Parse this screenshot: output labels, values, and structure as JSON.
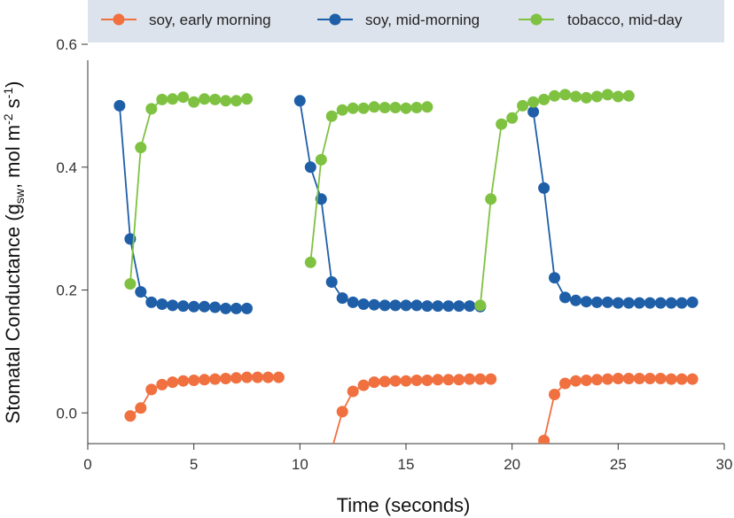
{
  "chart_data": {
    "type": "line",
    "xlabel": "Time (seconds)",
    "ylabel": {
      "pre": "Stomatal Conductance (g",
      "sub1": "sw",
      "mid": ", mol m",
      "sup1": "-2",
      "mid2": " s",
      "sup2": "-1",
      "post": ")"
    },
    "xlim": [
      0,
      30
    ],
    "ylim": [
      -0.05,
      0.6
    ],
    "xticks": [
      0,
      5,
      10,
      15,
      20,
      25,
      30
    ],
    "yticks": [
      0.0,
      0.2,
      0.4,
      0.6
    ],
    "ytick_labels": [
      "0.0",
      "0.2",
      "0.4",
      "0.6"
    ],
    "grid": false,
    "legend_position": "top",
    "series": [
      {
        "name": "soy, early morning",
        "color": "#f07040",
        "segments": [
          [
            [
              2.0,
              -0.005
            ],
            [
              2.5,
              0.008
            ],
            [
              3.0,
              0.038
            ],
            [
              3.5,
              0.046
            ],
            [
              4.0,
              0.05
            ],
            [
              4.5,
              0.052
            ],
            [
              5.0,
              0.053
            ],
            [
              5.5,
              0.054
            ],
            [
              6.0,
              0.055
            ],
            [
              6.5,
              0.056
            ],
            [
              7.0,
              0.057
            ],
            [
              7.5,
              0.058
            ],
            [
              8.0,
              0.058
            ],
            [
              8.5,
              0.058
            ],
            [
              9.0,
              0.058
            ]
          ],
          [
            [
              11.5,
              -0.06
            ],
            [
              12.0,
              0.002
            ],
            [
              12.5,
              0.035
            ],
            [
              13.0,
              0.045
            ],
            [
              13.5,
              0.05
            ],
            [
              14.0,
              0.051
            ],
            [
              14.5,
              0.052
            ],
            [
              15.0,
              0.052
            ],
            [
              15.5,
              0.053
            ],
            [
              16.0,
              0.053
            ],
            [
              16.5,
              0.054
            ],
            [
              17.0,
              0.054
            ],
            [
              17.5,
              0.054
            ],
            [
              18.0,
              0.055
            ],
            [
              18.5,
              0.055
            ],
            [
              19.0,
              0.055
            ]
          ],
          [
            [
              21.5,
              -0.045
            ],
            [
              22.0,
              0.03
            ],
            [
              22.5,
              0.048
            ],
            [
              23.0,
              0.052
            ],
            [
              23.5,
              0.053
            ],
            [
              24.0,
              0.054
            ],
            [
              24.5,
              0.055
            ],
            [
              25.0,
              0.056
            ],
            [
              25.5,
              0.056
            ],
            [
              26.0,
              0.056
            ],
            [
              26.5,
              0.056
            ],
            [
              27.0,
              0.056
            ],
            [
              27.5,
              0.055
            ],
            [
              28.0,
              0.055
            ],
            [
              28.5,
              0.055
            ]
          ]
        ]
      },
      {
        "name": "soy, mid-morning",
        "color": "#1f5fa8",
        "segments": [
          [
            [
              1.5,
              0.5
            ],
            [
              2.0,
              0.283
            ],
            [
              2.5,
              0.197
            ],
            [
              3.0,
              0.18
            ],
            [
              3.5,
              0.177
            ],
            [
              4.0,
              0.175
            ],
            [
              4.5,
              0.174
            ],
            [
              5.0,
              0.173
            ],
            [
              5.5,
              0.173
            ],
            [
              6.0,
              0.172
            ],
            [
              6.5,
              0.17
            ],
            [
              7.0,
              0.17
            ],
            [
              7.5,
              0.17
            ]
          ],
          [
            [
              10.0,
              0.508
            ],
            [
              10.5,
              0.4
            ],
            [
              11.0,
              0.348
            ],
            [
              11.5,
              0.213
            ],
            [
              12.0,
              0.187
            ],
            [
              12.5,
              0.18
            ],
            [
              13.0,
              0.177
            ],
            [
              13.5,
              0.176
            ],
            [
              14.0,
              0.175
            ],
            [
              14.5,
              0.175
            ],
            [
              15.0,
              0.175
            ],
            [
              15.5,
              0.175
            ],
            [
              16.0,
              0.174
            ],
            [
              16.5,
              0.174
            ],
            [
              17.0,
              0.174
            ],
            [
              17.5,
              0.174
            ],
            [
              18.0,
              0.174
            ],
            [
              18.5,
              0.173
            ]
          ],
          [
            [
              21.0,
              0.49
            ],
            [
              21.5,
              0.366
            ],
            [
              22.0,
              0.22
            ],
            [
              22.5,
              0.188
            ],
            [
              23.0,
              0.183
            ],
            [
              23.5,
              0.181
            ],
            [
              24.0,
              0.18
            ],
            [
              24.5,
              0.18
            ],
            [
              25.0,
              0.179
            ],
            [
              25.5,
              0.179
            ],
            [
              26.0,
              0.179
            ],
            [
              26.5,
              0.179
            ],
            [
              27.0,
              0.179
            ],
            [
              27.5,
              0.179
            ],
            [
              28.0,
              0.179
            ],
            [
              28.5,
              0.18
            ]
          ]
        ]
      },
      {
        "name": "tobacco, mid-day",
        "color": "#7fc241",
        "segments": [
          [
            [
              2.0,
              0.21
            ],
            [
              2.5,
              0.432
            ],
            [
              3.0,
              0.495
            ],
            [
              3.5,
              0.51
            ],
            [
              4.0,
              0.511
            ],
            [
              4.5,
              0.514
            ],
            [
              5.0,
              0.506
            ],
            [
              5.5,
              0.511
            ],
            [
              6.0,
              0.51
            ],
            [
              6.5,
              0.508
            ],
            [
              7.0,
              0.508
            ],
            [
              7.5,
              0.511
            ]
          ],
          [
            [
              10.5,
              0.245
            ],
            [
              11.0,
              0.412
            ],
            [
              11.5,
              0.483
            ],
            [
              12.0,
              0.493
            ],
            [
              12.5,
              0.496
            ],
            [
              13.0,
              0.496
            ],
            [
              13.5,
              0.498
            ],
            [
              14.0,
              0.497
            ],
            [
              14.5,
              0.497
            ],
            [
              15.0,
              0.496
            ],
            [
              15.5,
              0.497
            ],
            [
              16.0,
              0.498
            ]
          ],
          [
            [
              18.5,
              0.175
            ],
            [
              19.0,
              0.348
            ],
            [
              19.5,
              0.47
            ],
            [
              20.0,
              0.48
            ],
            [
              20.5,
              0.5
            ],
            [
              21.0,
              0.506
            ],
            [
              21.5,
              0.51
            ],
            [
              22.0,
              0.516
            ],
            [
              22.5,
              0.518
            ],
            [
              23.0,
              0.515
            ],
            [
              23.5,
              0.513
            ],
            [
              24.0,
              0.515
            ],
            [
              24.5,
              0.518
            ],
            [
              25.0,
              0.515
            ],
            [
              25.5,
              0.516
            ]
          ]
        ]
      }
    ]
  }
}
